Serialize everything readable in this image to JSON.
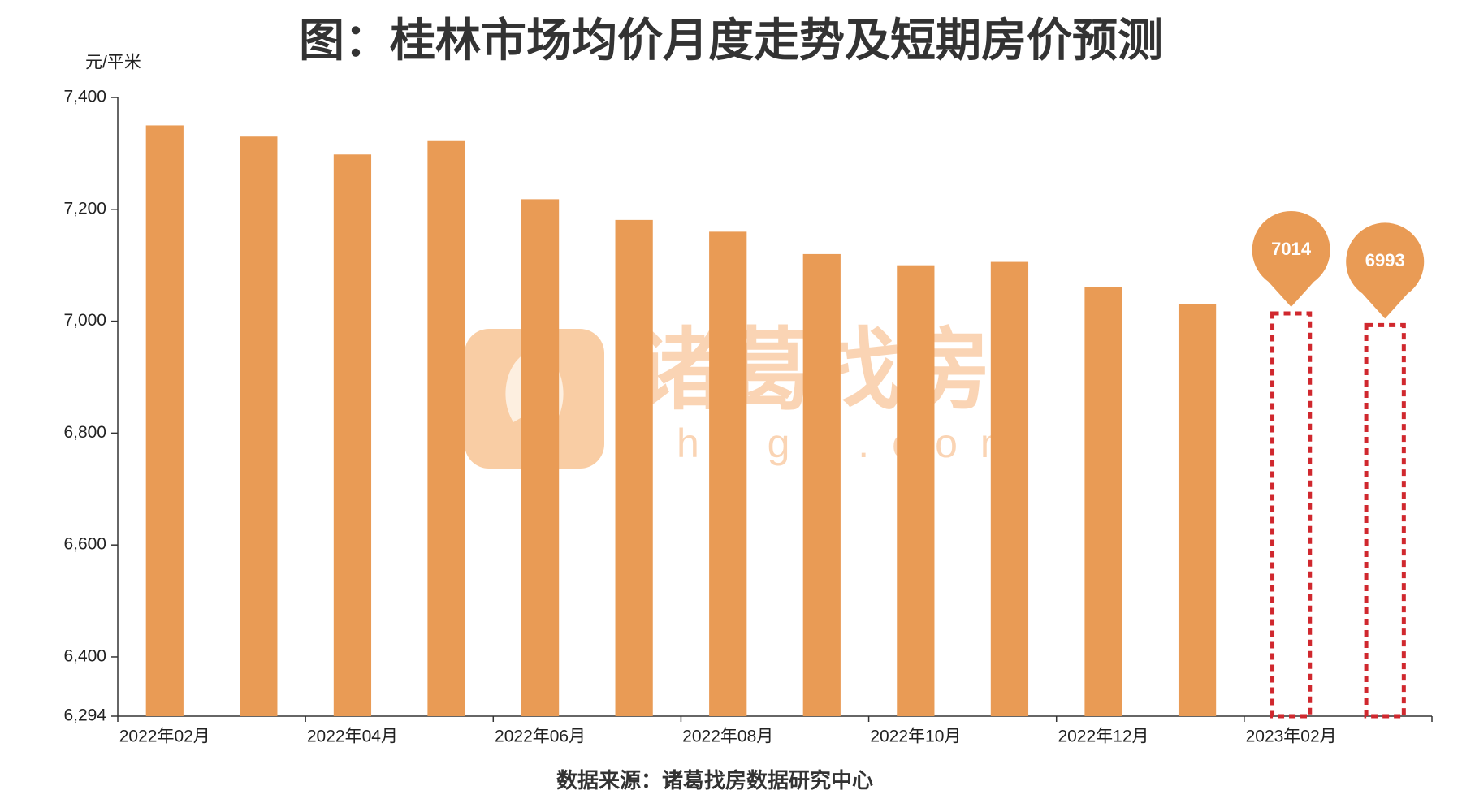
{
  "chart_data": {
    "type": "bar",
    "title": "图：桂林市场均价月度走势及短期房价预测",
    "y_label": "元/平米",
    "source": "数据来源：诸葛找房数据研究中心",
    "categories": [
      "2022年02月",
      null,
      "2022年04月",
      null,
      "2022年06月",
      null,
      "2022年08月",
      null,
      "2022年10月",
      null,
      "2022年12月",
      null,
      "2023年02月",
      null
    ],
    "values": [
      7350,
      7330,
      7298,
      7322,
      7218,
      7181,
      7160,
      7120,
      7100,
      7106,
      7061,
      7031,
      7014,
      6993
    ],
    "forecast": [
      false,
      false,
      false,
      false,
      false,
      false,
      false,
      false,
      false,
      false,
      false,
      false,
      true,
      true
    ],
    "color": "#e99b55",
    "forecast_color": "#d0282e",
    "ylim": [
      6294,
      7400
    ],
    "yticks": [
      {
        "value": 6294,
        "label": "6,294"
      },
      {
        "value": 6400,
        "label": "6,400"
      },
      {
        "value": 6600,
        "label": "6,600"
      },
      {
        "value": 6800,
        "label": "6,800"
      },
      {
        "value": 7000,
        "label": "7,000"
      },
      {
        "value": 7200,
        "label": "7,200"
      },
      {
        "value": 7400,
        "label": "7,400"
      }
    ]
  }
}
